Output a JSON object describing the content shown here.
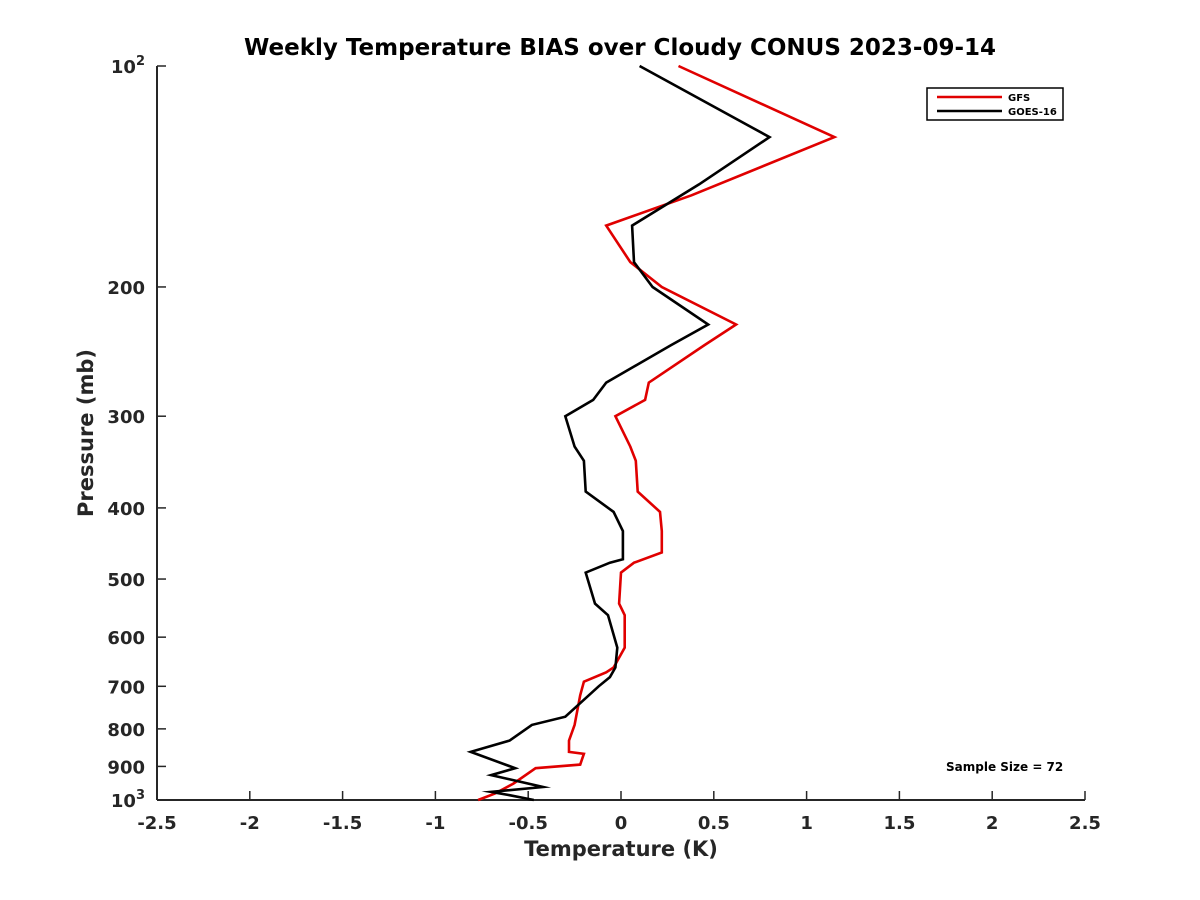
{
  "chart_data": {
    "type": "line",
    "title": "Weekly Temperature BIAS over Cloudy CONUS 2023-09-14",
    "xlabel": "Temperature (K)",
    "ylabel": "Pressure (mb)",
    "xlim": [
      -2.5,
      2.5
    ],
    "ylim": [
      100,
      1000
    ],
    "y_scale": "log",
    "y_reversed": true,
    "x_ticks": [
      "-2.5",
      "-2",
      "-1.5",
      "-1",
      "-0.5",
      "0",
      "0.5",
      "1",
      "1.5",
      "2",
      "2.5"
    ],
    "x_tick_values": [
      -2.5,
      -2,
      -1.5,
      -1,
      -0.5,
      0,
      0.5,
      1,
      1.5,
      2,
      2.5
    ],
    "y_ticks": [
      {
        "value": 100,
        "base": "10",
        "exp": "2"
      },
      {
        "value": 200,
        "label": "200"
      },
      {
        "value": 300,
        "label": "300"
      },
      {
        "value": 400,
        "label": "400"
      },
      {
        "value": 500,
        "label": "500"
      },
      {
        "value": 600,
        "label": "600"
      },
      {
        "value": 700,
        "label": "700"
      },
      {
        "value": 800,
        "label": "800"
      },
      {
        "value": 900,
        "label": "900"
      },
      {
        "value": 1000,
        "base": "10",
        "exp": "3"
      }
    ],
    "grid": false,
    "legend_position": "top-right",
    "annotation": "Sample Size = 72",
    "series": [
      {
        "name": "GFS",
        "color": "#e00000",
        "points": [
          [
            0.31,
            100
          ],
          [
            1.15,
            125
          ],
          [
            0.38,
            150
          ],
          [
            -0.08,
            165
          ],
          [
            0.05,
            185
          ],
          [
            0.22,
            200
          ],
          [
            0.62,
            225
          ],
          [
            0.45,
            240
          ],
          [
            0.15,
            270
          ],
          [
            0.13,
            285
          ],
          [
            -0.03,
            300
          ],
          [
            0.05,
            330
          ],
          [
            0.08,
            345
          ],
          [
            0.09,
            380
          ],
          [
            0.21,
            405
          ],
          [
            0.22,
            430
          ],
          [
            0.22,
            460
          ],
          [
            0.07,
            475
          ],
          [
            0.0,
            490
          ],
          [
            -0.01,
            540
          ],
          [
            0.02,
            560
          ],
          [
            0.02,
            620
          ],
          [
            -0.04,
            660
          ],
          [
            -0.08,
            670
          ],
          [
            -0.2,
            690
          ],
          [
            -0.22,
            720
          ],
          [
            -0.25,
            790
          ],
          [
            -0.28,
            830
          ],
          [
            -0.28,
            860
          ],
          [
            -0.2,
            865
          ],
          [
            -0.22,
            895
          ],
          [
            -0.46,
            905
          ],
          [
            -0.58,
            950
          ],
          [
            -0.68,
            980
          ],
          [
            -0.77,
            1000
          ]
        ]
      },
      {
        "name": "GOES-16",
        "color": "#000000",
        "points": [
          [
            0.1,
            100
          ],
          [
            0.8,
            125
          ],
          [
            0.42,
            145
          ],
          [
            0.06,
            165
          ],
          [
            0.07,
            185
          ],
          [
            0.17,
            200
          ],
          [
            0.47,
            225
          ],
          [
            0.27,
            240
          ],
          [
            -0.08,
            270
          ],
          [
            -0.15,
            285
          ],
          [
            -0.3,
            300
          ],
          [
            -0.25,
            330
          ],
          [
            -0.2,
            345
          ],
          [
            -0.19,
            380
          ],
          [
            -0.04,
            405
          ],
          [
            0.01,
            430
          ],
          [
            0.01,
            470
          ],
          [
            -0.06,
            475
          ],
          [
            -0.19,
            490
          ],
          [
            -0.14,
            540
          ],
          [
            -0.07,
            560
          ],
          [
            -0.02,
            620
          ],
          [
            -0.03,
            660
          ],
          [
            -0.06,
            680
          ],
          [
            -0.12,
            700
          ],
          [
            -0.3,
            770
          ],
          [
            -0.48,
            790
          ],
          [
            -0.6,
            830
          ],
          [
            -0.81,
            860
          ],
          [
            -0.57,
            905
          ],
          [
            -0.7,
            925
          ],
          [
            -0.42,
            960
          ],
          [
            -0.7,
            975
          ],
          [
            -0.6,
            985
          ],
          [
            -0.47,
            1000
          ]
        ]
      }
    ]
  }
}
